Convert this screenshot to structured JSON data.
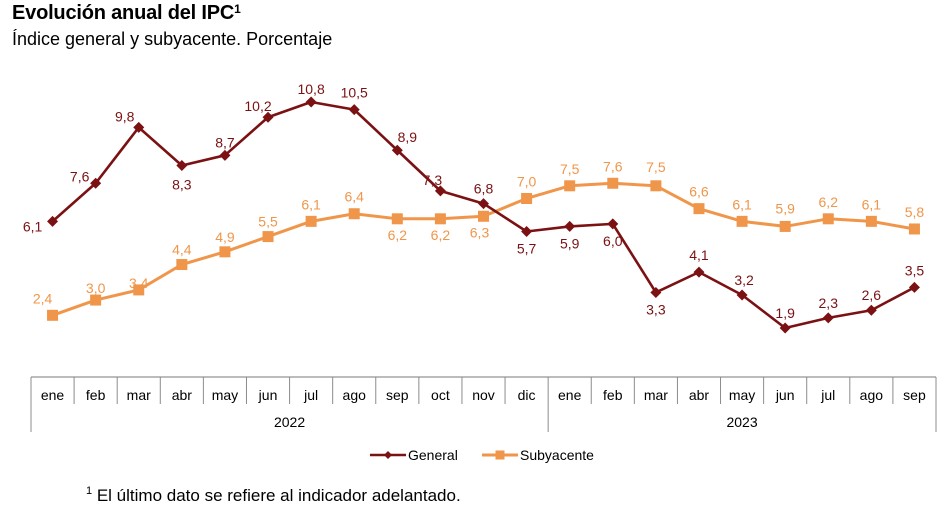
{
  "header": {
    "title": "Evolución anual del IPC",
    "title_sup": "1",
    "subtitle": "Índice general y subyacente. Porcentaje"
  },
  "footnote": {
    "sup": "1",
    "text": " El último dato se refiere al indicador adelantado."
  },
  "chart_data": {
    "type": "line",
    "title": "Evolución anual del IPC",
    "subtitle": "Índice general y subyacente. Porcentaje",
    "xlabel": "",
    "ylabel": "",
    "x": [
      "ene",
      "feb",
      "mar",
      "abr",
      "may",
      "jun",
      "jul",
      "ago",
      "sep",
      "oct",
      "nov",
      "dic",
      "ene",
      "feb",
      "mar",
      "abr",
      "may",
      "jun",
      "jul",
      "ago",
      "sep"
    ],
    "year_groups": [
      {
        "label": "2022",
        "count": 12
      },
      {
        "label": "2023",
        "count": 9
      }
    ],
    "series": [
      {
        "name": "General",
        "color": "#7B1113",
        "marker": "diamond",
        "values": [
          6.1,
          7.6,
          9.8,
          8.3,
          8.7,
          10.2,
          10.8,
          10.5,
          8.9,
          7.3,
          6.8,
          5.7,
          5.9,
          6.0,
          3.3,
          4.1,
          3.2,
          1.9,
          2.3,
          2.6,
          3.5
        ],
        "labels": [
          "6,1",
          "7,6",
          "9,8",
          "8,3",
          "8,7",
          "10,2",
          "10,8",
          "10,5",
          "8,9",
          "7,3",
          "6,8",
          "5,7",
          "5,9",
          "6,0",
          "3,3",
          "4,1",
          "3,2",
          "1,9",
          "2,3",
          "2,6",
          "3,5"
        ]
      },
      {
        "name": "Subyacente",
        "color": "#F0964A",
        "marker": "square",
        "values": [
          2.4,
          3.0,
          3.4,
          4.4,
          4.9,
          5.5,
          6.1,
          6.4,
          6.2,
          6.2,
          6.3,
          7.0,
          7.5,
          7.6,
          7.5,
          6.6,
          6.1,
          5.9,
          6.2,
          6.1,
          5.8
        ],
        "labels": [
          "2,4",
          "3,0",
          "3,4",
          "4,4",
          "4,9",
          "5,5",
          "6,1",
          "6,4",
          "6,2",
          "6,2",
          "6,3",
          "7,0",
          "7,5",
          "7,6",
          "7,5",
          "6,6",
          "6,1",
          "5,9",
          "6,2",
          "6,1",
          "5,8"
        ]
      }
    ],
    "ylim": [
      1.0,
      11.5
    ],
    "grid": false,
    "y_axis_visible": false,
    "legend": "bottom-center"
  }
}
